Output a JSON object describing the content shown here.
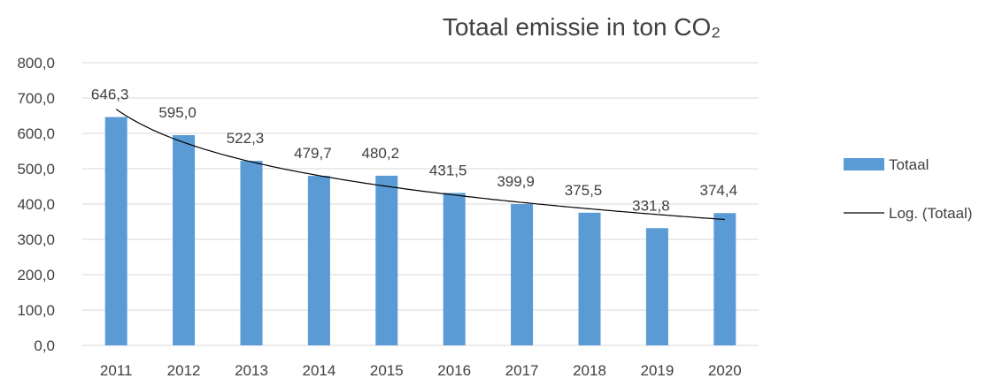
{
  "chart_data": {
    "type": "bar",
    "title": "Totaal emissie in ton CO₂",
    "xlabel": "",
    "ylabel": "",
    "categories": [
      "2011",
      "2012",
      "2013",
      "2014",
      "2015",
      "2016",
      "2017",
      "2018",
      "2019",
      "2020"
    ],
    "series": [
      {
        "name": "Totaal",
        "values": [
          646.3,
          595.0,
          522.3,
          479.7,
          480.2,
          431.5,
          399.9,
          375.5,
          331.8,
          374.4
        ],
        "data_labels": [
          "646,3",
          "595,0",
          "522,3",
          "479,7",
          "480,2",
          "431,5",
          "399,9",
          "375,5",
          "331,8",
          "374,4"
        ],
        "color": "#5b9bd5"
      }
    ],
    "trendline": {
      "name": "Log. (Totaal)",
      "type": "logarithmic",
      "of_series": "Totaal",
      "color": "#000000"
    },
    "ylim": [
      0,
      800
    ],
    "yticks": [
      0,
      100,
      200,
      300,
      400,
      500,
      600,
      700,
      800
    ],
    "ytick_labels": [
      "0,0",
      "100,0",
      "200,0",
      "300,0",
      "400,0",
      "500,0",
      "600,0",
      "700,0",
      "800,0"
    ],
    "grid": true,
    "gridline_color": "#d9d9d9",
    "legend_position": "right"
  }
}
